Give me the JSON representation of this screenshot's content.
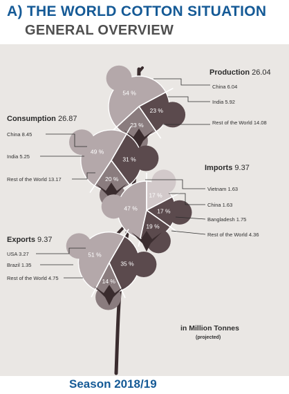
{
  "title": "A) THE WORLD COTTON SITUATION",
  "subtitle": "GENERAL OVERVIEW",
  "unit_label": "in Million Tonnes",
  "unit_note": "(projected)",
  "season": "Season 2018/19",
  "colors": {
    "title": "#155a96",
    "subtitle": "#4f4f4f",
    "background": "#eae7e4",
    "dark": "#5b4a4d",
    "medium": "#8a7c7e",
    "light": "#b4a8aa",
    "lightest": "#d2c9ca",
    "stem": "#3a2c2e",
    "leader": "#2b2b2b"
  },
  "chart_data": [
    {
      "type": "pie",
      "title": "Production",
      "total": "26.04",
      "labels": [
        "China",
        "India",
        "Rest of the World"
      ],
      "values": [
        6.04,
        5.92,
        14.08
      ],
      "value_labels": [
        "6.04",
        "5.92",
        "14.08"
      ],
      "percents": [
        "23 %",
        "23 %",
        "54 %"
      ]
    },
    {
      "type": "pie",
      "title": "Consumption",
      "total": "26.87",
      "labels": [
        "China",
        "India",
        "Rest of the World"
      ],
      "values": [
        8.45,
        5.25,
        13.17
      ],
      "value_labels": [
        "8.45",
        "5.25",
        "13.17"
      ],
      "percents": [
        "31 %",
        "20 %",
        "49 %"
      ]
    },
    {
      "type": "pie",
      "title": "Imports",
      "total": "9.37",
      "labels": [
        "Vietnam",
        "China",
        "Bangladesh",
        "Rest of the World"
      ],
      "values": [
        1.63,
        1.63,
        1.75,
        4.36
      ],
      "value_labels": [
        "1.63",
        "1.63",
        "1.75",
        "4.36"
      ],
      "percents": [
        "17 %",
        "17 %",
        "19 %",
        "47 %"
      ]
    },
    {
      "type": "pie",
      "title": "Exports",
      "total": "9.37",
      "labels": [
        "USA",
        "Brazil",
        "Rest of the World"
      ],
      "values": [
        3.27,
        1.35,
        4.75
      ],
      "value_labels": [
        "3.27",
        "1.35",
        "4.75"
      ],
      "percents": [
        "35 %",
        "14 %",
        "51 %"
      ]
    }
  ]
}
